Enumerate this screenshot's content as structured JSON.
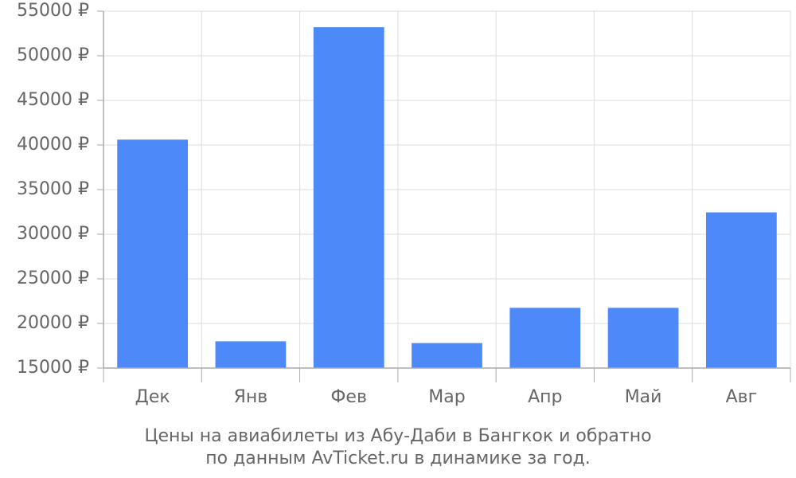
{
  "chart_data": {
    "type": "bar",
    "categories": [
      "Дек",
      "Янв",
      "Фев",
      "Мар",
      "Апр",
      "Май",
      "Авг"
    ],
    "values": [
      40600,
      18000,
      53200,
      17800,
      21750,
      21750,
      32450
    ],
    "ylim": [
      15000,
      55000
    ],
    "y_ticks": [
      15000,
      20000,
      25000,
      30000,
      35000,
      40000,
      45000,
      50000,
      55000
    ],
    "y_tick_suffix": " ₽",
    "grid": true,
    "bar_color": "#4d89f9",
    "caption_lines": [
      "Цены на авиабилеты из Абу-Даби в Бангкок и обратно",
      "по данным AvTicket.ru в динамике за год."
    ]
  }
}
